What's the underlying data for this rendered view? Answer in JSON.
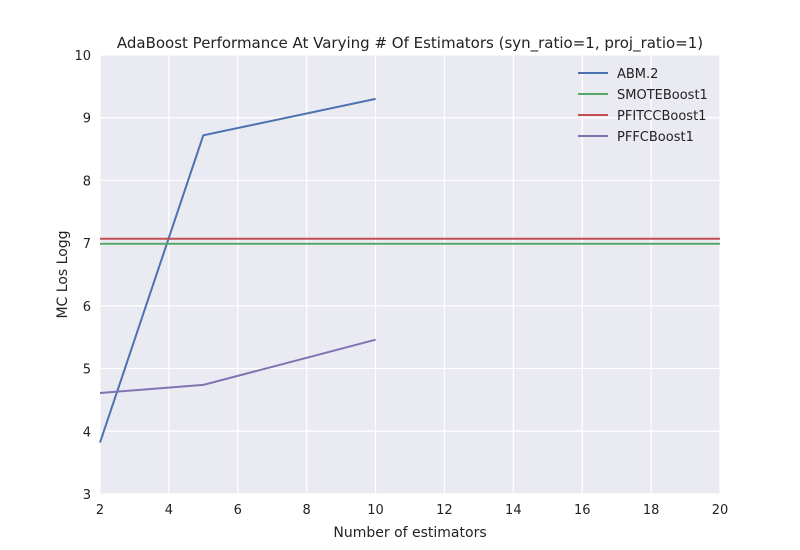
{
  "chart_data": {
    "type": "line",
    "title": "AdaBoost Performance At Varying # Of Estimators (syn_ratio=1, proj_ratio=1)",
    "xlabel": "Number of estimators",
    "ylabel": "MC Los Logg",
    "xlim": [
      2,
      20
    ],
    "ylim": [
      3,
      10
    ],
    "xticks": [
      "2",
      "4",
      "6",
      "8",
      "10",
      "12",
      "14",
      "16",
      "18",
      "20"
    ],
    "yticks": [
      "3",
      "4",
      "5",
      "6",
      "7",
      "8",
      "9",
      "10"
    ],
    "grid": true,
    "legend_position": "top-right",
    "series": [
      {
        "name": "ABM.2",
        "color": "#4c72b0",
        "x": [
          2,
          5,
          10
        ],
        "y": [
          3.82,
          8.72,
          9.3
        ]
      },
      {
        "name": "SMOTEBoost1",
        "color": "#55a868",
        "x": [
          2,
          20
        ],
        "y": [
          6.99,
          6.99
        ]
      },
      {
        "name": "PFITCCBoost1",
        "color": "#c44e52",
        "x": [
          2,
          20
        ],
        "y": [
          7.07,
          7.07
        ]
      },
      {
        "name": "PFFCBoost1",
        "color": "#8172b2",
        "x": [
          2,
          5,
          10
        ],
        "y": [
          4.61,
          4.74,
          5.46
        ]
      }
    ]
  }
}
